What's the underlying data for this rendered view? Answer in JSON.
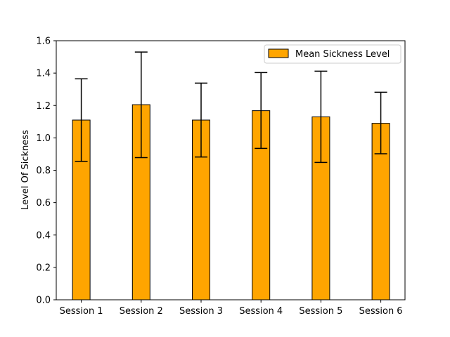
{
  "chart_data": {
    "type": "bar",
    "categories": [
      "Session 1",
      "Session 2",
      "Session 3",
      "Session 4",
      "Session 5",
      "Session 6"
    ],
    "series": [
      {
        "name": "Mean Sickness Level",
        "values": [
          1.11,
          1.205,
          1.11,
          1.168,
          1.13,
          1.09
        ],
        "error_low": [
          0.855,
          0.878,
          0.882,
          0.935,
          0.848,
          0.902
        ],
        "error_high": [
          1.365,
          1.53,
          1.338,
          1.403,
          1.412,
          1.282
        ]
      }
    ],
    "ylabel": "Level Of Sickness",
    "xlabel": "",
    "ylim": [
      0,
      1.6
    ],
    "yticks": [
      "0.0",
      "0.2",
      "0.4",
      "0.6",
      "0.8",
      "1.0",
      "1.2",
      "1.4",
      "1.6"
    ],
    "legend_position": "top-right",
    "colors": {
      "bar": "#FFA500",
      "edge": "#000000",
      "error": "#000000"
    }
  }
}
